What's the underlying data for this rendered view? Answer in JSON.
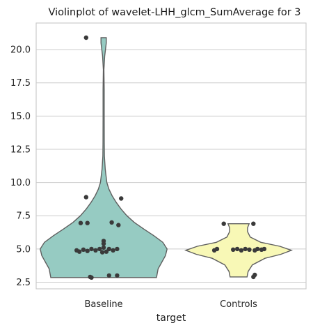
{
  "chart_data": {
    "type": "violin",
    "title": "Violinplot of wavelet-LHH_glcm_SumAverage for 3",
    "xlabel": "target",
    "ylabel": "",
    "ylim": [
      2.0,
      22.0
    ],
    "yticks": [
      2.5,
      5.0,
      7.5,
      10.0,
      12.5,
      15.0,
      17.5,
      20.0
    ],
    "ytick_labels": [
      "2.5",
      "5.0",
      "7.5",
      "10.0",
      "12.5",
      "15.0",
      "17.5",
      "20.0"
    ],
    "grid": true,
    "categories": [
      "Baseline",
      "Controls"
    ],
    "series": [
      {
        "category": "Baseline",
        "color": "#96cbc2",
        "range": [
          2.85,
          20.9
        ],
        "profile": [
          [
            2.85,
            1.0
          ],
          [
            3.5,
            1.03
          ],
          [
            4.0,
            1.1
          ],
          [
            4.5,
            1.17
          ],
          [
            5.0,
            1.2
          ],
          [
            5.5,
            1.12
          ],
          [
            6.0,
            0.95
          ],
          [
            6.5,
            0.76
          ],
          [
            7.0,
            0.58
          ],
          [
            7.5,
            0.44
          ],
          [
            8.0,
            0.33
          ],
          [
            8.5,
            0.24
          ],
          [
            9.0,
            0.16
          ],
          [
            9.5,
            0.1
          ],
          [
            10.0,
            0.06
          ],
          [
            11.0,
            0.03
          ],
          [
            12.0,
            0.015
          ],
          [
            13.0,
            0.012
          ],
          [
            15.0,
            0.01
          ],
          [
            17.0,
            0.01
          ],
          [
            18.5,
            0.005
          ],
          [
            19.5,
            0.02
          ],
          [
            20.5,
            0.05
          ],
          [
            20.9,
            0.05
          ]
        ],
        "points": [
          [
            -0.13,
            20.9
          ],
          [
            -0.13,
            8.9
          ],
          [
            0.13,
            8.8
          ],
          [
            -0.17,
            6.95
          ],
          [
            -0.12,
            6.95
          ],
          [
            0.06,
            7.0
          ],
          [
            0.11,
            6.8
          ],
          [
            -0.2,
            4.9
          ],
          [
            -0.18,
            4.8
          ],
          [
            -0.15,
            4.95
          ],
          [
            -0.12,
            4.85
          ],
          [
            -0.09,
            5.0
          ],
          [
            -0.06,
            4.9
          ],
          [
            -0.03,
            5.0
          ],
          [
            0.0,
            5.1
          ],
          [
            0.0,
            5.4
          ],
          [
            0.0,
            5.6
          ],
          [
            0.02,
            4.8
          ],
          [
            0.04,
            5.0
          ],
          [
            0.07,
            4.9
          ],
          [
            0.1,
            5.0
          ],
          [
            -0.01,
            4.75
          ],
          [
            -0.1,
            2.9
          ],
          [
            -0.09,
            2.85
          ],
          [
            0.04,
            3.0
          ],
          [
            0.1,
            3.0
          ]
        ]
      },
      {
        "category": "Controls",
        "color": "#f8f8b6",
        "range": [
          2.9,
          6.9
        ],
        "profile": [
          [
            2.9,
            0.16
          ],
          [
            3.3,
            0.18
          ],
          [
            3.8,
            0.26
          ],
          [
            4.3,
            0.5
          ],
          [
            4.6,
            0.8
          ],
          [
            4.9,
            1.0
          ],
          [
            5.2,
            0.78
          ],
          [
            5.5,
            0.42
          ],
          [
            5.9,
            0.22
          ],
          [
            6.3,
            0.17
          ],
          [
            6.6,
            0.17
          ],
          [
            6.9,
            0.2
          ]
        ],
        "points": [
          [
            -0.11,
            6.9
          ],
          [
            0.11,
            6.9
          ],
          [
            -0.18,
            4.9
          ],
          [
            -0.16,
            5.0
          ],
          [
            -0.04,
            4.95
          ],
          [
            -0.01,
            5.0
          ],
          [
            0.02,
            4.9
          ],
          [
            0.05,
            5.0
          ],
          [
            0.08,
            4.95
          ],
          [
            0.12,
            4.9
          ],
          [
            0.14,
            5.0
          ],
          [
            0.17,
            4.95
          ],
          [
            0.19,
            5.0
          ],
          [
            0.11,
            2.9
          ],
          [
            0.12,
            3.05
          ]
        ]
      }
    ]
  }
}
